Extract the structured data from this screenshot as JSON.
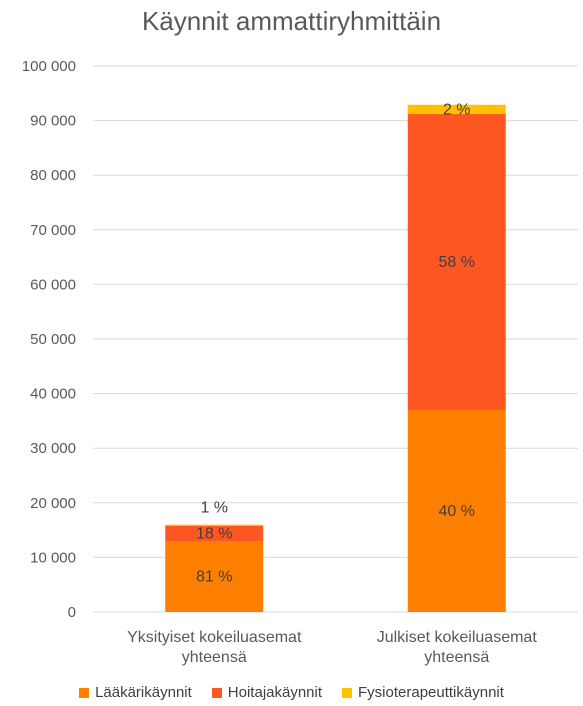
{
  "chart_data": {
    "type": "bar",
    "stacked": true,
    "title": "Käynnit ammattiryhmittäin",
    "xlabel": "",
    "ylabel": "",
    "ylim": [
      0,
      100000
    ],
    "y_tick_values": [
      0,
      10000,
      20000,
      30000,
      40000,
      50000,
      60000,
      70000,
      80000,
      90000,
      100000
    ],
    "y_tick_labels": [
      "0",
      "10 000",
      "20 000",
      "30 000",
      "40 000",
      "50 000",
      "60 000",
      "70 000",
      "80 000",
      "90 000",
      "100 000"
    ],
    "grid": true,
    "legend_position": "bottom",
    "categories": [
      [
        "Yksityiset kokeiluasemat",
        "yhteensä"
      ],
      [
        "Julkiset kokeiluasemat",
        "yhteensä"
      ]
    ],
    "series": [
      {
        "name": "Lääkärikäynnit",
        "color": "#FF8000",
        "values": [
          13000,
          37000
        ],
        "labels": [
          "81 %",
          "40 %"
        ]
      },
      {
        "name": "Hoitajakäynnit",
        "color": "#FF5722",
        "values": [
          2800,
          54200
        ],
        "labels": [
          "18 %",
          "58 %"
        ]
      },
      {
        "name": "Fysioterapeuttikäynnit",
        "color": "#FFC000",
        "values": [
          200,
          1700
        ],
        "labels": [
          "1 %",
          "2 %"
        ]
      }
    ]
  }
}
